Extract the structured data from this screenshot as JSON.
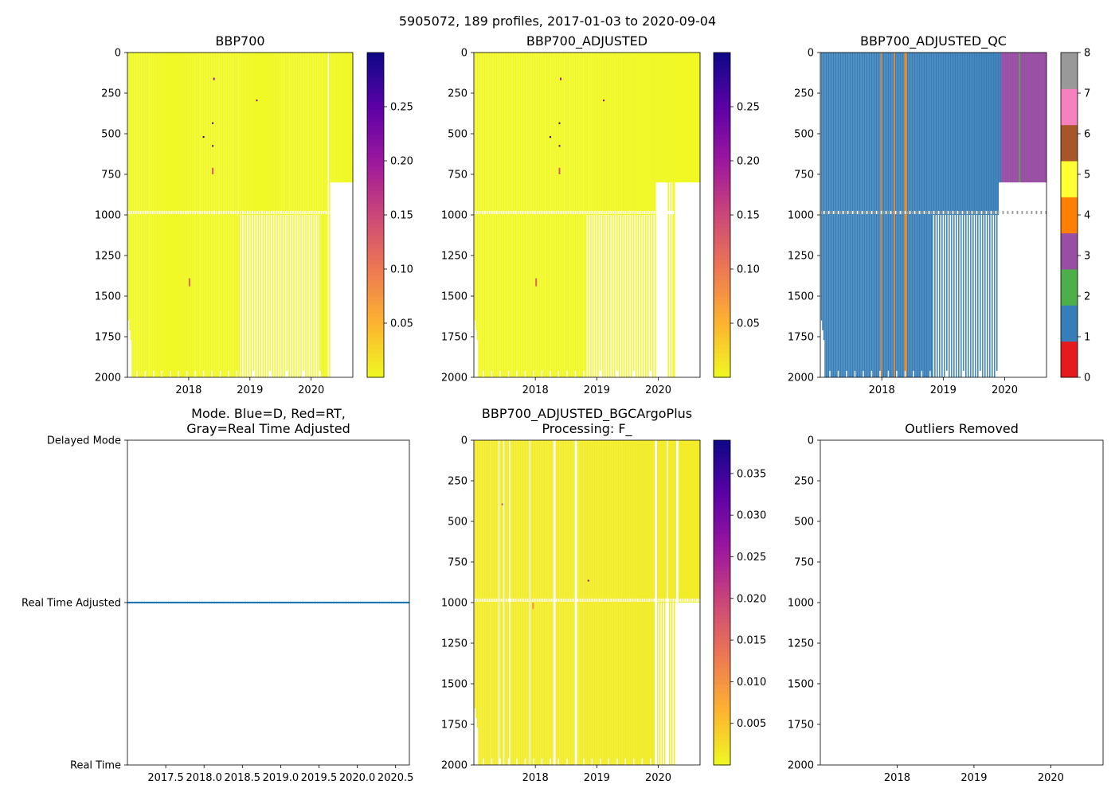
{
  "suptitle": "5905072, 189 profiles, 2017-01-03 to 2020-09-04",
  "colors": {
    "plasma_r": [
      "#f0f921",
      "#fdb42f",
      "#ed7953",
      "#cc4778",
      "#9c179e",
      "#5c01a6",
      "#0d0887"
    ],
    "qc": [
      "#e41a1c",
      "#377eb8",
      "#4daf4a",
      "#984ea3",
      "#ff7f00",
      "#ffff33",
      "#a65628",
      "#f781bf",
      "#999999"
    ],
    "mode_line": "#1f77b4"
  },
  "chart_data": [
    {
      "id": "bbp700",
      "type": "heatmap",
      "title": "BBP700",
      "xlabel": "",
      "ylabel": "",
      "xlim": [
        2017.0,
        2020.68
      ],
      "ylim": [
        2000,
        0
      ],
      "yticks": [
        0,
        250,
        500,
        750,
        1000,
        1250,
        1500,
        1750,
        2000
      ],
      "xticks": [
        2018,
        2019,
        2020
      ],
      "xtick_labels": [
        "2018",
        "2019",
        "2020"
      ],
      "colormap": "plasma_r",
      "clim": [
        0.0,
        0.3
      ],
      "colorbar_ticks": [
        0.05,
        0.1,
        0.15,
        0.2,
        0.25
      ],
      "colorbar_labels": [
        "0.05",
        "0.10",
        "0.15",
        "0.20",
        "0.25"
      ],
      "background_value": 0.001,
      "deep_cutoff_date": 2018.82,
      "gaps_full_depth": [
        2020.27
      ],
      "gap_band_depth": [
        975,
        995
      ],
      "shallow_only_after": 2020.3,
      "shallow_only_max_depth": 800,
      "late_deep_profiles": [
        2020.16,
        2020.2,
        2020.23,
        2020.25
      ],
      "spikes": [
        {
          "date": 2018.0,
          "depth_min": 1390,
          "depth_max": 1440,
          "value": 0.12
        },
        {
          "date": 2018.38,
          "depth_min": 710,
          "depth_max": 750,
          "value": 0.13
        },
        {
          "date": 2018.38,
          "depth_min": 570,
          "depth_max": 580,
          "value": 0.26
        },
        {
          "date": 2018.38,
          "depth_min": 430,
          "depth_max": 440,
          "value": 0.28
        },
        {
          "date": 2018.23,
          "depth_min": 515,
          "depth_max": 525,
          "value": 0.29
        },
        {
          "date": 2018.4,
          "depth_min": 155,
          "depth_max": 170,
          "value": 0.2
        },
        {
          "date": 2019.1,
          "depth_min": 290,
          "depth_max": 300,
          "value": 0.22
        }
      ]
    },
    {
      "id": "bbp700_adj",
      "type": "heatmap",
      "title": "BBP700_ADJUSTED",
      "xlabel": "",
      "ylabel": "",
      "xlim": [
        2017.0,
        2020.68
      ],
      "ylim": [
        2000,
        0
      ],
      "yticks": [
        0,
        250,
        500,
        750,
        1000,
        1250,
        1500,
        1750,
        2000
      ],
      "xticks": [
        2018,
        2019,
        2020
      ],
      "xtick_labels": [
        "2018",
        "2019",
        "2020"
      ],
      "colormap": "plasma_r",
      "clim": [
        0.0,
        0.3
      ],
      "colorbar_ticks": [
        0.05,
        0.1,
        0.15,
        0.2,
        0.25
      ],
      "colorbar_labels": [
        "0.05",
        "0.10",
        "0.15",
        "0.20",
        "0.25"
      ],
      "background_value": 0.001,
      "deep_cutoff_date": 2018.82,
      "gaps_full_depth": [],
      "gap_band_depth": [
        975,
        995
      ],
      "shallow_only_after": 2019.95,
      "shallow_only_max_depth": 800,
      "late_deep_profiles": [
        2020.16,
        2020.2,
        2020.23,
        2020.25
      ],
      "spikes": [
        {
          "date": 2018.0,
          "depth_min": 1390,
          "depth_max": 1440,
          "value": 0.12
        },
        {
          "date": 2018.38,
          "depth_min": 710,
          "depth_max": 750,
          "value": 0.13
        },
        {
          "date": 2018.38,
          "depth_min": 570,
          "depth_max": 580,
          "value": 0.26
        },
        {
          "date": 2018.38,
          "depth_min": 430,
          "depth_max": 440,
          "value": 0.28
        },
        {
          "date": 2018.23,
          "depth_min": 515,
          "depth_max": 525,
          "value": 0.29
        },
        {
          "date": 2018.4,
          "depth_min": 155,
          "depth_max": 170,
          "value": 0.2
        },
        {
          "date": 2019.1,
          "depth_min": 290,
          "depth_max": 300,
          "value": 0.22
        }
      ]
    },
    {
      "id": "bbp700_adj_qc",
      "type": "heatmap",
      "title": "BBP700_ADJUSTED_QC",
      "xlabel": "",
      "ylabel": "",
      "xlim": [
        2017.0,
        2020.68
      ],
      "ylim": [
        2000,
        0
      ],
      "yticks": [
        0,
        250,
        500,
        750,
        1000,
        1250,
        1500,
        1750,
        2000
      ],
      "xticks": [
        2018,
        2019,
        2020
      ],
      "xtick_labels": [
        "2018",
        "2019",
        "2020"
      ],
      "colormap": "qc",
      "clim": [
        0,
        8
      ],
      "colorbar_ticks": [
        0,
        1,
        2,
        3,
        4,
        5,
        6,
        7,
        8
      ],
      "colorbar_labels": [
        "0",
        "1",
        "2",
        "3",
        "4",
        "5",
        "6",
        "7",
        "8"
      ],
      "base_flag": 1,
      "late_flag": 3,
      "late_flag_after": 2019.93,
      "flag4_profiles": [
        2017.98,
        2018.2,
        2018.38
      ],
      "flag2_profiles": [
        2020.23
      ],
      "flag8_band_depth": [
        975,
        995
      ],
      "deep_cutoff_date": 2018.82,
      "shallow_only_max_depth": 800
    },
    {
      "id": "mode",
      "type": "line",
      "title": "Mode. Blue=D, Red=RT,\nGray=Real Time Adjusted",
      "xlabel": "",
      "ylabel": "",
      "xlim": [
        2017.0,
        2020.68
      ],
      "ylim": [
        0,
        2
      ],
      "yticks": [
        0,
        1,
        2
      ],
      "ytick_labels": [
        "Real Time",
        "Real Time Adjusted",
        "Delayed Mode"
      ],
      "xticks": [
        2017.5,
        2018.0,
        2018.5,
        2019.0,
        2019.5,
        2020.0,
        2020.5
      ],
      "xtick_labels": [
        "2017.5",
        "2018.0",
        "2018.5",
        "2019.0",
        "2019.5",
        "2020.0",
        "2020.5"
      ],
      "series": [
        {
          "name": "mode",
          "n_profiles": 189,
          "value": 1
        }
      ]
    },
    {
      "id": "bgcargoplus",
      "type": "heatmap",
      "title": "BBP700_ADJUSTED_BGCArgoPlus\nProcessing: F_",
      "xlabel": "",
      "ylabel": "",
      "xlim": [
        2017.0,
        2020.68
      ],
      "ylim": [
        2000,
        0
      ],
      "yticks": [
        0,
        250,
        500,
        750,
        1000,
        1250,
        1500,
        1750,
        2000
      ],
      "xticks": [
        2018,
        2019,
        2020
      ],
      "xtick_labels": [
        "2018",
        "2019",
        "2020"
      ],
      "colormap": "plasma_r",
      "clim": [
        0.0,
        0.039
      ],
      "colorbar_ticks": [
        0.005,
        0.01,
        0.015,
        0.02,
        0.025,
        0.03,
        0.035
      ],
      "colorbar_labels": [
        "0.005",
        "0.010",
        "0.015",
        "0.020",
        "0.025",
        "0.030",
        "0.035"
      ],
      "background_value": 0.0012,
      "deep_cutoff_date": 2019.95,
      "gaps_full_depth": [
        2017.4,
        2017.47,
        2017.57,
        2017.9,
        2018.3,
        2018.65,
        2019.95,
        2020.13,
        2020.3
      ],
      "gap_band_depth": [
        975,
        995
      ],
      "shallow_only_after": 2020.3,
      "shallow_only_max_depth": 1000,
      "late_deep_profiles": [],
      "spikes": [
        {
          "date": 2017.45,
          "depth_min": 390,
          "depth_max": 400,
          "value": 0.02
        },
        {
          "date": 2017.95,
          "depth_min": 1000,
          "depth_max": 1040,
          "value": 0.01
        },
        {
          "date": 2018.85,
          "depth_min": 860,
          "depth_max": 870,
          "value": 0.028
        }
      ]
    },
    {
      "id": "outliers",
      "type": "scatter",
      "title": "Outliers Removed",
      "xlabel": "",
      "ylabel": "",
      "xlim": [
        2017.0,
        2020.68
      ],
      "ylim": [
        2000,
        0
      ],
      "yticks": [
        0,
        250,
        500,
        750,
        1000,
        1250,
        1500,
        1750,
        2000
      ],
      "xticks": [
        2018,
        2019,
        2020
      ],
      "xtick_labels": [
        "2018",
        "2019",
        "2020"
      ],
      "points": []
    }
  ]
}
